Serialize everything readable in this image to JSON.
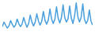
{
  "chart_data": {
    "type": "line",
    "x": [
      0,
      1,
      2,
      3,
      4,
      5,
      6,
      7,
      8,
      9,
      10,
      11,
      12,
      13,
      14,
      15,
      16,
      17,
      18,
      19,
      20,
      21,
      22,
      23,
      24,
      25,
      26,
      27,
      28,
      29,
      30,
      31,
      32,
      33,
      34,
      35,
      36,
      37,
      38,
      39,
      40,
      41,
      42,
      43,
      44,
      45,
      46,
      47,
      48,
      49,
      50,
      51,
      52,
      53,
      54,
      55
    ],
    "values": [
      20,
      35,
      25,
      15,
      22,
      40,
      28,
      18,
      25,
      45,
      30,
      20,
      28,
      50,
      32,
      18,
      30,
      58,
      35,
      22,
      35,
      62,
      38,
      25,
      38,
      70,
      40,
      28,
      42,
      78,
      45,
      30,
      45,
      85,
      48,
      32,
      50,
      92,
      50,
      35,
      45,
      88,
      48,
      30,
      55,
      98,
      52,
      35,
      50,
      95,
      45,
      30,
      40,
      75,
      38,
      25
    ],
    "color": "#4a9fdc",
    "xlim": [
      0,
      55
    ],
    "ylim": [
      0,
      100
    ],
    "tick_labels": false,
    "grid": false
  }
}
